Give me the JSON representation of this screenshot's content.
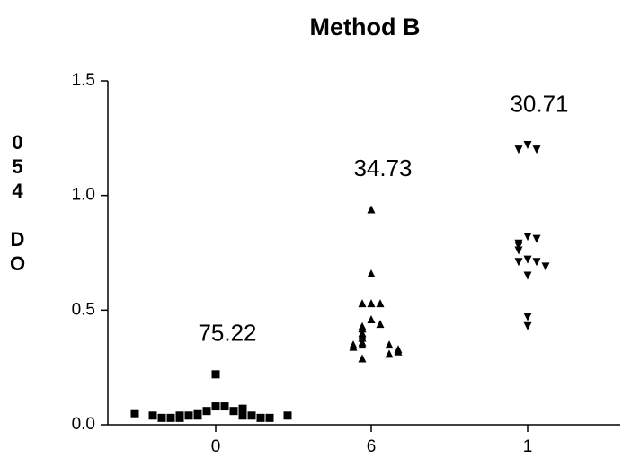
{
  "chart_data": {
    "type": "scatter",
    "title": "Method B",
    "y_label": "054 DO",
    "categories": [
      "0",
      "6",
      "1"
    ],
    "groups": [
      {
        "marker": "square",
        "annotation": "75.22",
        "values": [
          0.22,
          0.08,
          0.08,
          0.06,
          0.06,
          0.05,
          0.07,
          0.04,
          0.04,
          0.04,
          0.04,
          0.04,
          0.03,
          0.03,
          0.03,
          0.03,
          0.03,
          0.04,
          0.04,
          0.05
        ]
      },
      {
        "marker": "triangle-up",
        "annotation": "34.73",
        "values": [
          0.94,
          0.66,
          0.53,
          0.53,
          0.53,
          0.46,
          0.44,
          0.43,
          0.42,
          0.4,
          0.39,
          0.38,
          0.36,
          0.35,
          0.35,
          0.35,
          0.34,
          0.33,
          0.32,
          0.31,
          0.29
        ]
      },
      {
        "marker": "triangle-down",
        "annotation": "30.71",
        "values": [
          1.22,
          1.2,
          1.2,
          0.82,
          0.81,
          0.79,
          0.78,
          0.76,
          0.72,
          0.71,
          0.71,
          0.69,
          0.65,
          0.47,
          0.43
        ]
      }
    ],
    "color": "#000000",
    "ylim": [
      0,
      1.5
    ],
    "yticks": [
      {
        "value": 0,
        "label": "0.0"
      },
      {
        "value": 0.5,
        "label": "0.5"
      },
      {
        "value": 1,
        "label": "1.0"
      },
      {
        "value": 1.5,
        "label": "1.5"
      }
    ],
    "grid": false
  }
}
